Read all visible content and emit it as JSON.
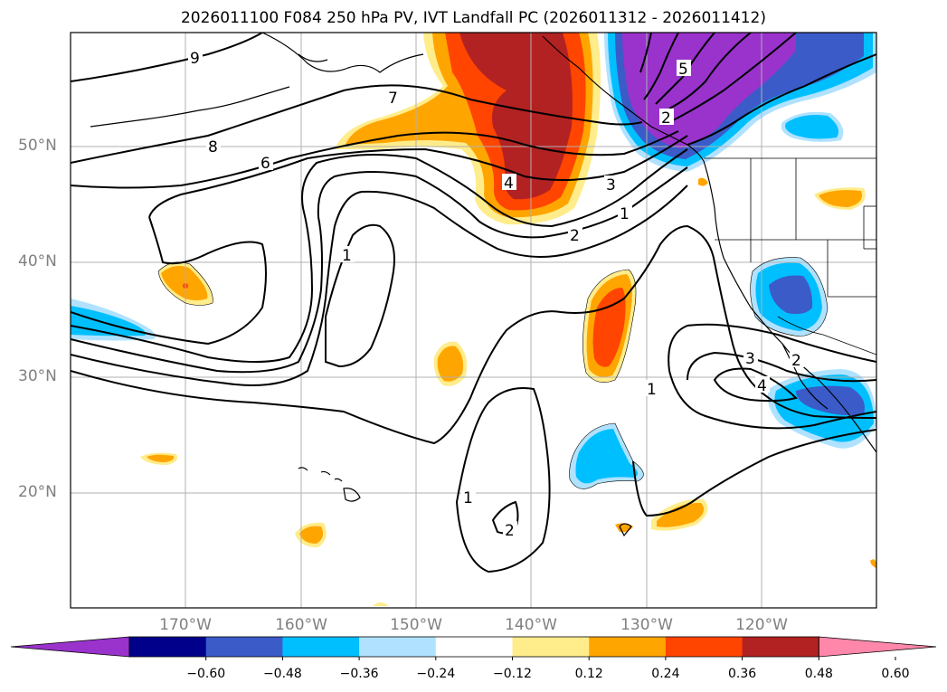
{
  "title": "2026011100 F084 250 hPa PV, IVT Landfall PC (2026011312 - 2026011412)",
  "lat_labels": [
    "50°N",
    "40°N",
    "30°N",
    "20°N"
  ],
  "lon_labels": [
    "170°W",
    "160°W",
    "150°W",
    "140°W",
    "130°W",
    "120°W"
  ],
  "colorbar": {
    "ticks": [
      "−0.60",
      "−0.48",
      "−0.36",
      "−0.24",
      "−0.12",
      "0.12",
      "0.24",
      "0.36",
      "0.48",
      "0.60"
    ],
    "colors": [
      "#9933cc",
      "#00008b",
      "#3a5bc8",
      "#00bfff",
      "#b0e2ff",
      "#ffffff",
      "#ffec8b",
      "#ffa500",
      "#ff4500",
      "#b22222",
      "#ff88aa"
    ]
  },
  "contour_labels": [
    "9",
    "8",
    "7",
    "6",
    "5",
    "4",
    "3",
    "2",
    "1",
    "1",
    "1",
    "1",
    "2",
    "3",
    "2",
    "4",
    "2"
  ]
}
